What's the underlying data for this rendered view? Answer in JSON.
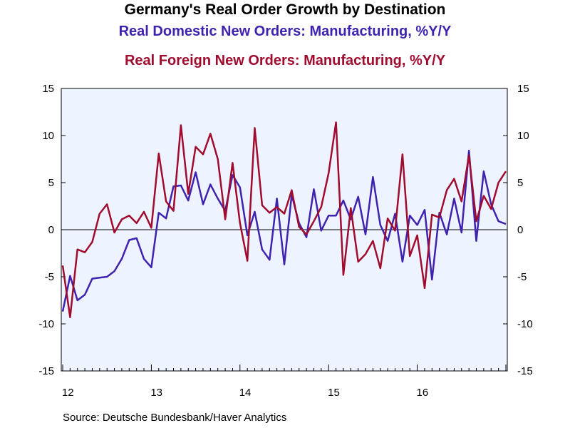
{
  "chart_data": {
    "type": "line",
    "title": "Germany's Real Order Growth by Destination",
    "xlabel": "",
    "ylabel": "",
    "ylim": [
      -15,
      15
    ],
    "yticks": [
      "15",
      "10",
      "5",
      "0",
      "-5",
      "-10",
      "-15"
    ],
    "right_axis": true,
    "grid": false,
    "x_start": "2012-01",
    "x_end": "2016-12",
    "xtick_labels": [
      "12",
      "13",
      "14",
      "15",
      "16"
    ],
    "series": [
      {
        "name": "Real Domestic New Orders: Manufacturing, %Y/Y",
        "color": "#4022b0",
        "values": [
          -8.7,
          -4.9,
          -7.5,
          -6.9,
          -5.2,
          -5.1,
          -5.0,
          -4.4,
          -3.1,
          -1.1,
          -0.9,
          -3.1,
          -4.0,
          1.8,
          1.2,
          4.6,
          4.7,
          3.1,
          6.1,
          2.7,
          4.8,
          3.3,
          2.0,
          5.8,
          4.5,
          -0.6,
          1.9,
          -2.1,
          -3.2,
          3.3,
          -3.7,
          3.7,
          0.7,
          -0.8,
          4.3,
          -0.1,
          1.5,
          1.5,
          3.1,
          1.1,
          3.5,
          -0.5,
          5.6,
          0.5,
          -1.2,
          1.7,
          -3.4,
          1.5,
          0.5,
          2.1,
          -5.3,
          1.8,
          -0.5,
          3.3,
          -0.3,
          8.4,
          -1.2,
          6.2,
          2.7,
          0.9,
          0.6
        ]
      },
      {
        "name": "Real Foreign New Orders: Manufacturing, %Y/Y",
        "color": "#a00b2e",
        "values": [
          -3.8,
          -9.3,
          -2.1,
          -2.4,
          -1.3,
          1.7,
          2.7,
          -0.3,
          1.1,
          1.5,
          0.7,
          1.9,
          0.2,
          8.1,
          3.0,
          2.0,
          11.1,
          3.8,
          8.8,
          8.0,
          10.2,
          7.5,
          1.1,
          7.1,
          0.7,
          -3.3,
          10.8,
          2.6,
          1.8,
          2.4,
          1.7,
          4.2,
          0.3,
          -0.5,
          0.9,
          2.4,
          6.0,
          11.4,
          -4.8,
          2.3,
          -3.4,
          -2.6,
          -1.2,
          -4.1,
          1.2,
          -0.1,
          8.0,
          -2.8,
          -0.6,
          -6.2,
          1.6,
          1.3,
          4.2,
          5.4,
          3.0,
          7.9,
          0.9,
          3.6,
          2.2,
          5.0,
          6.2
        ]
      }
    ]
  },
  "source": "Source:  Deutsche Bundesbank/Haver Analytics"
}
